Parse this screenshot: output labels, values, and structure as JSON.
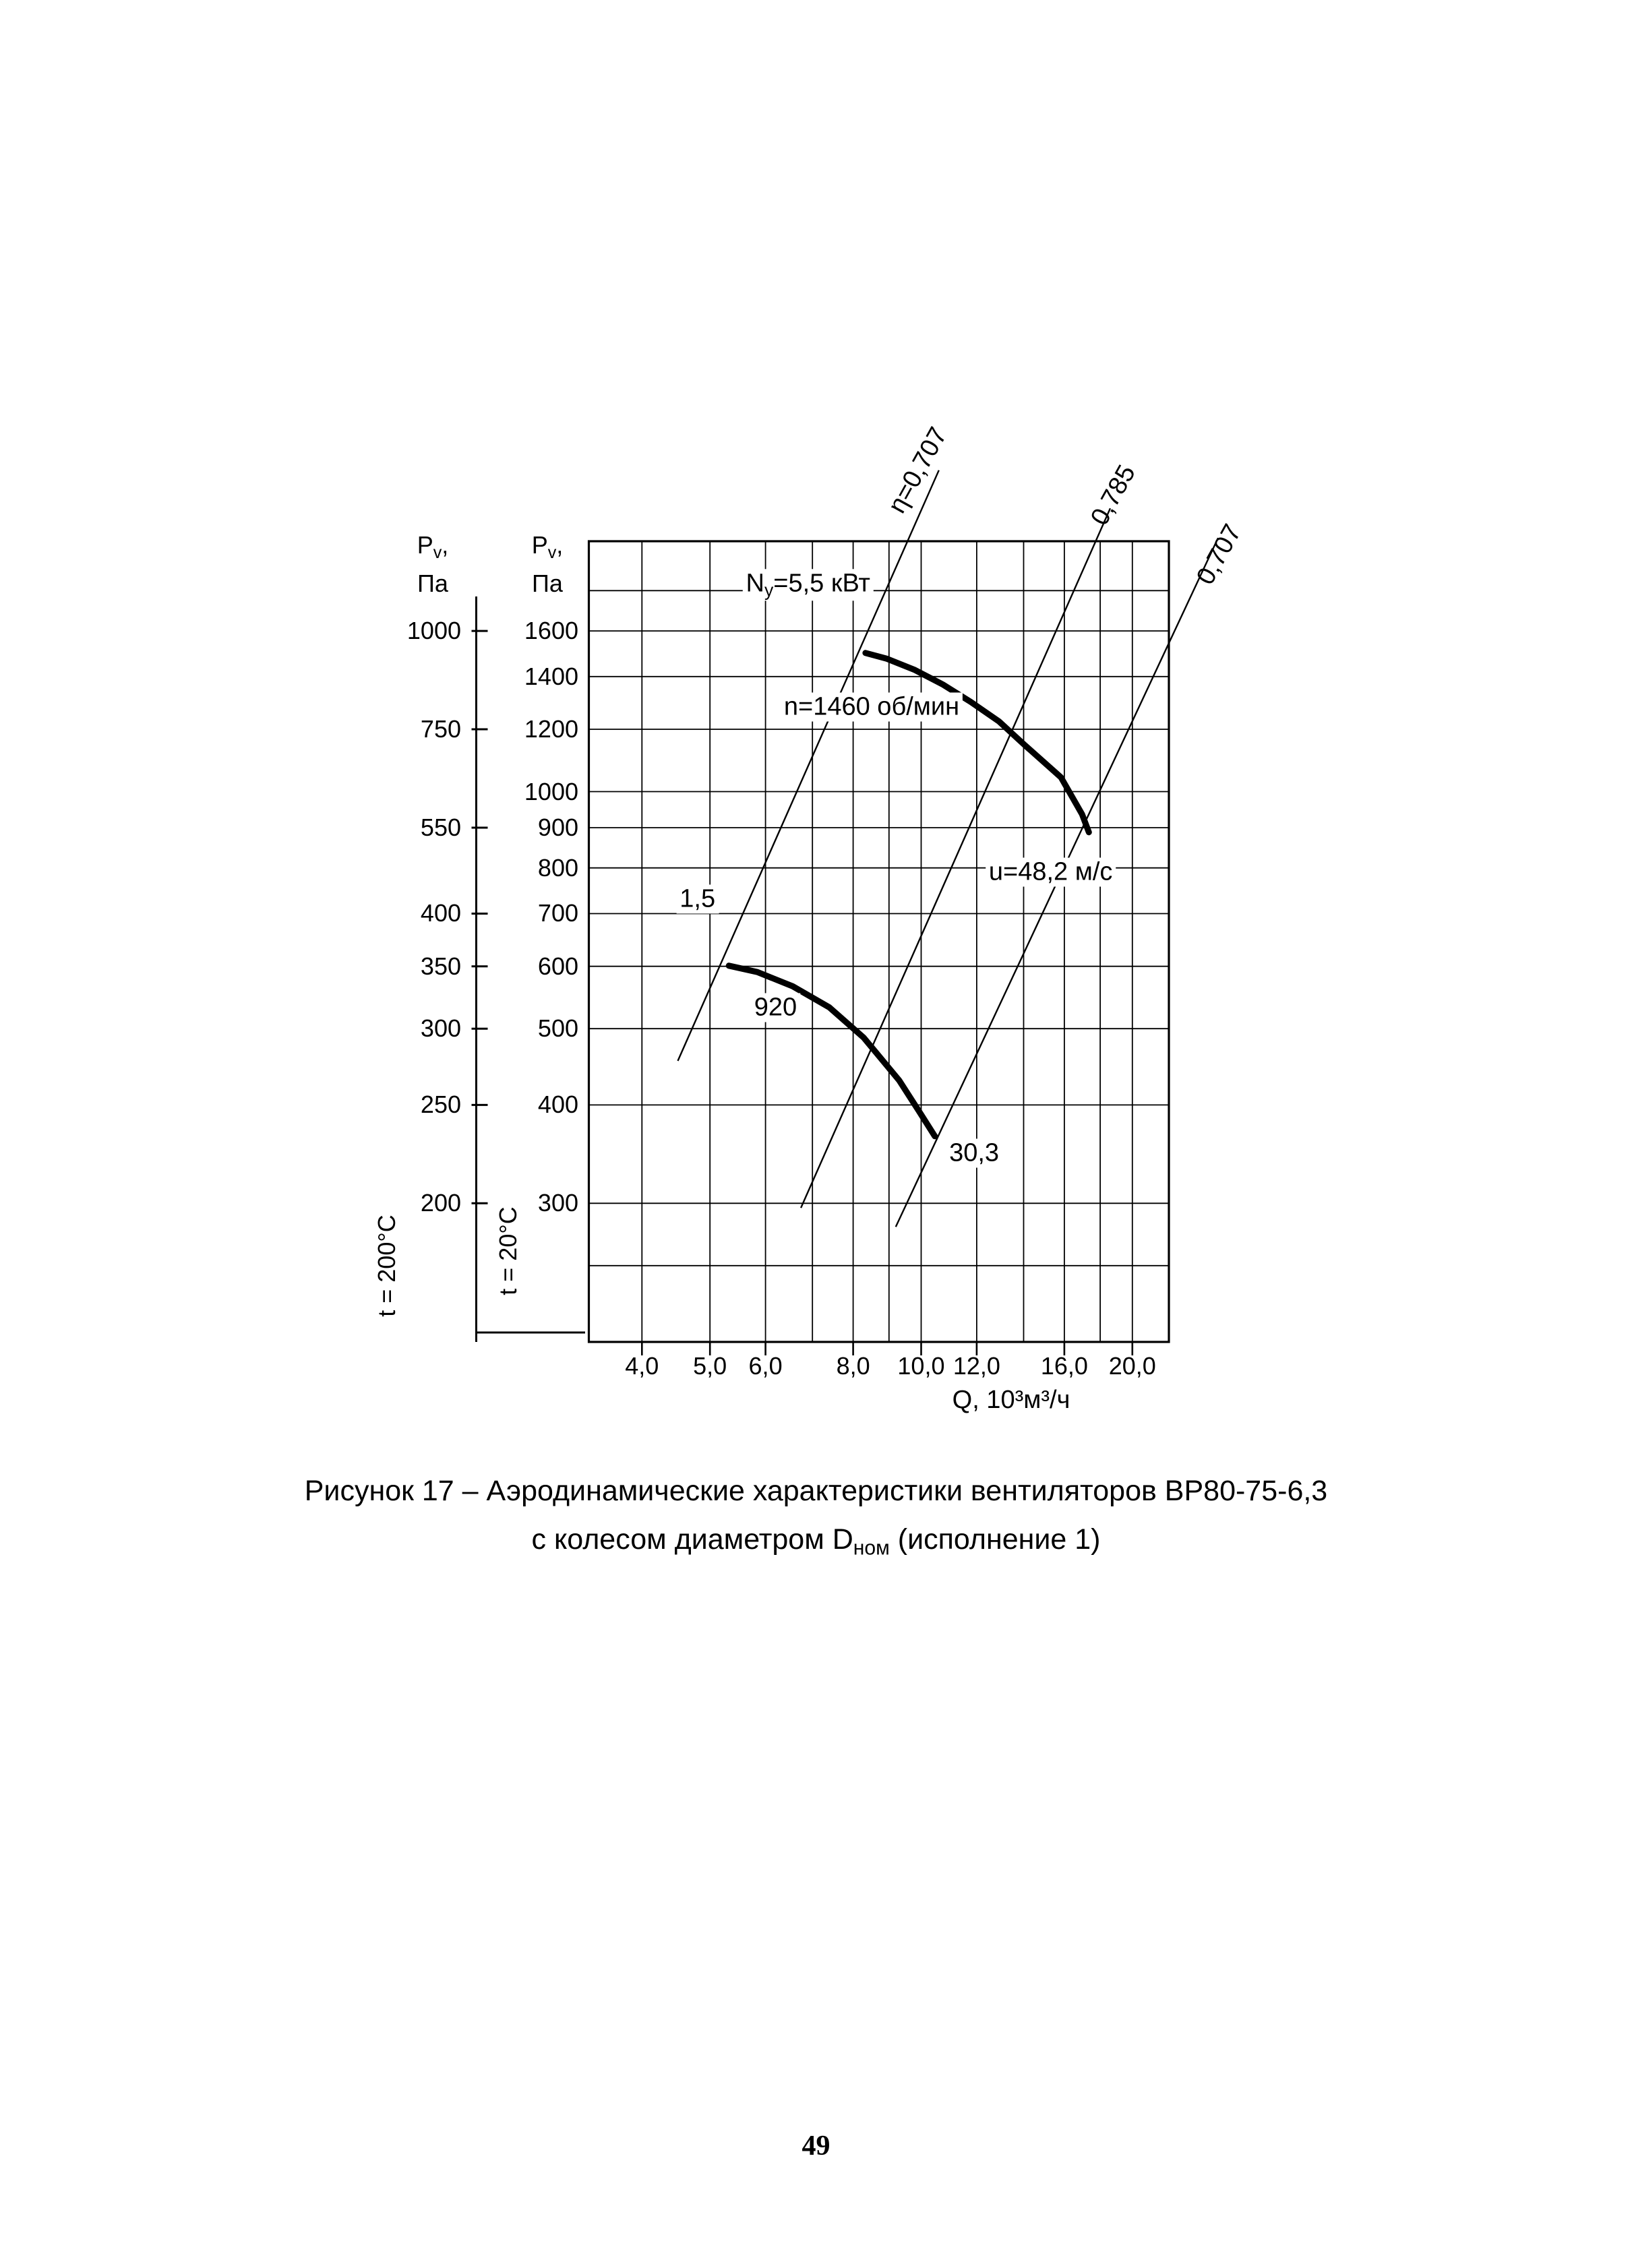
{
  "page": {
    "number": "49"
  },
  "caption": {
    "line1": "Рисунок 17 – Аэродинамические характеристики вентиляторов ВР80-75-6,3",
    "line2_pre": "с  колесом диаметром D",
    "line2_sub": "ном",
    "line2_post": " (исполнение 1)"
  },
  "axes_headers": {
    "left": {
      "pre": "P",
      "sub": "v",
      "post": ",",
      "line2": "Па"
    },
    "right": {
      "pre": "P",
      "sub": "v",
      "post": ",",
      "line2": "Па"
    }
  },
  "chart_data": {
    "type": "line",
    "description": "Аэродинамические характеристики вентилятора ВР80-75-6,3, log-log сетка давление/производительность",
    "x_axis": {
      "title": "Q, 10³м³/ч",
      "scale": "log",
      "range": [
        3.36,
        22.55
      ],
      "gridlines": [
        4,
        5,
        6,
        7,
        8,
        9,
        10,
        12,
        14,
        16,
        18,
        20
      ],
      "ticks": [
        {
          "value": 4,
          "label": "4,0"
        },
        {
          "value": 5,
          "label": "5,0"
        },
        {
          "value": 6,
          "label": "6,0"
        },
        {
          "value": 8,
          "label": "8,0"
        },
        {
          "value": 10,
          "label": "10,0"
        },
        {
          "value": 12,
          "label": "12,0"
        },
        {
          "value": 16,
          "label": "16,0"
        },
        {
          "value": 20,
          "label": "20,0"
        }
      ]
    },
    "y_axis_20": {
      "title": "Pv, Па",
      "rotated_label": "t = 20°C",
      "scale": "log",
      "range": [
        200,
        2080
      ],
      "gridlines": [
        250,
        300,
        400,
        500,
        600,
        700,
        800,
        900,
        1000,
        1200,
        1400,
        1600,
        1800
      ],
      "ticks": [
        {
          "value": 1600,
          "label": "1600"
        },
        {
          "value": 1400,
          "label": "1400"
        },
        {
          "value": 1200,
          "label": "1200"
        },
        {
          "value": 1000,
          "label": "1000"
        },
        {
          "value": 900,
          "label": "900"
        },
        {
          "value": 800,
          "label": "800"
        },
        {
          "value": 700,
          "label": "700"
        },
        {
          "value": 600,
          "label": "600"
        },
        {
          "value": 500,
          "label": "500"
        },
        {
          "value": 400,
          "label": "400"
        },
        {
          "value": 300,
          "label": "300"
        }
      ]
    },
    "y_axis_200": {
      "title": "Pv, Па",
      "rotated_label": "t = 200°C",
      "ticks": [
        {
          "label": "1000",
          "align_value": 1600
        },
        {
          "label": "750",
          "align_value": 1200
        },
        {
          "label": "550",
          "align_value": 900
        },
        {
          "label": "400",
          "align_value": 700
        },
        {
          "label": "350",
          "align_value": 600
        },
        {
          "label": "300",
          "align_value": 500
        },
        {
          "label": "250",
          "align_value": 400
        },
        {
          "label": "200",
          "align_value": 300
        }
      ]
    },
    "curves": [
      {
        "name": "pressure-n1460",
        "rpm": 1460,
        "points": [
          [
            8.33,
            1500
          ],
          [
            8.94,
            1475
          ],
          [
            9.8,
            1427
          ],
          [
            10.74,
            1368
          ],
          [
            11.77,
            1300
          ],
          [
            12.91,
            1228
          ],
          [
            14.06,
            1145
          ],
          [
            15.82,
            1043
          ],
          [
            16.96,
            936
          ],
          [
            17.34,
            888
          ]
        ]
      },
      {
        "name": "pressure-n920",
        "rpm": 920,
        "points": [
          [
            5.32,
            601
          ],
          [
            5.84,
            590
          ],
          [
            6.56,
            566
          ],
          [
            7.4,
            532
          ],
          [
            8.28,
            487
          ],
          [
            9.3,
            430
          ],
          [
            9.96,
            391
          ],
          [
            10.46,
            365
          ]
        ]
      }
    ],
    "efficiency_lines": [
      {
        "label": "η=0,707",
        "from": [
          4.5,
          455
        ],
        "to": [
          10.6,
          2560
        ]
      },
      {
        "label": "0,785",
        "from": [
          6.74,
          296
        ],
        "to": [
          18.6,
          2290
        ]
      },
      {
        "label": "0,707",
        "from": [
          9.2,
          280
        ],
        "to": [
          26.5,
          2100
        ]
      }
    ],
    "annotations": [
      {
        "id": "eta-left-label",
        "text": "η=0,707",
        "q": 9.9,
        "p": 2560,
        "rotate": -61
      },
      {
        "id": "eta-mid-label",
        "text": "0,785",
        "q": 18.8,
        "p": 2380,
        "rotate": -61
      },
      {
        "id": "eta-right-label",
        "text": "0,707",
        "q": 26.6,
        "p": 2000,
        "rotate": -61
      },
      {
        "id": "power-upper-label",
        "parts": [
          {
            "t": "N"
          },
          {
            "t": "y",
            "sub": true
          },
          {
            "t": "=5,5 кВт"
          }
        ],
        "q": 6.9,
        "p": 1830
      },
      {
        "id": "rpm-upper-label",
        "text": "n=1460 об/мин",
        "q": 8.5,
        "p": 1280
      },
      {
        "id": "speed-upper-label",
        "text": "u=48,2 м/с",
        "q": 15.3,
        "p": 790
      },
      {
        "id": "power-lower-label",
        "text": "1,5",
        "q": 4.8,
        "p": 730
      },
      {
        "id": "rpm-lower-label",
        "text": "920",
        "q": 6.2,
        "p": 532
      },
      {
        "id": "speed-lower-label",
        "text": "30,3",
        "q": 11.9,
        "p": 347
      }
    ]
  }
}
